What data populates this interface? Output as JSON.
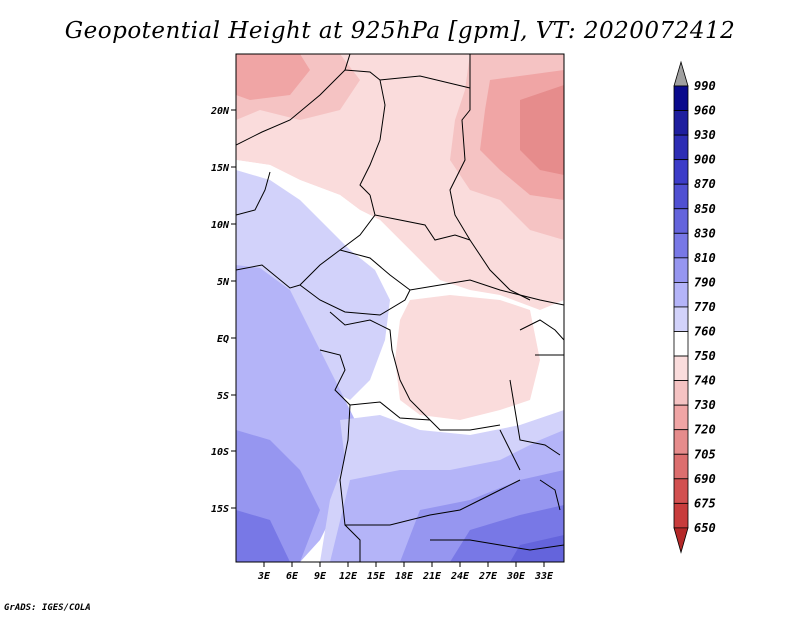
{
  "title": "Geopotential Height at 925hPa [gpm], VT: 2020072412",
  "credit": "GrADS: IGES/COLA",
  "lat_labels": [
    "20N",
    "15N",
    "10N",
    "5N",
    "EQ",
    "5S",
    "10S",
    "15S"
  ],
  "lon_labels": [
    "3E",
    "6E",
    "9E",
    "12E",
    "15E",
    "18E",
    "21E",
    "24E",
    "27E",
    "30E",
    "33E"
  ],
  "colorbar": {
    "levels": [
      "990",
      "960",
      "930",
      "900",
      "870",
      "850",
      "830",
      "810",
      "790",
      "770",
      "760",
      "750",
      "740",
      "730",
      "720",
      "705",
      "690",
      "675",
      "650"
    ],
    "colors": [
      "#0a0a8c",
      "#1e1e9e",
      "#2d2db4",
      "#3c3cc8",
      "#5050d2",
      "#6464dc",
      "#7878e6",
      "#9696f0",
      "#b4b4f8",
      "#d2d2fa",
      "#ffffff",
      "#fadcdc",
      "#f5c3c3",
      "#f0a5a5",
      "#e68c8c",
      "#dc6e6e",
      "#d25050",
      "#c83c3c",
      "#b42828"
    ]
  }
}
